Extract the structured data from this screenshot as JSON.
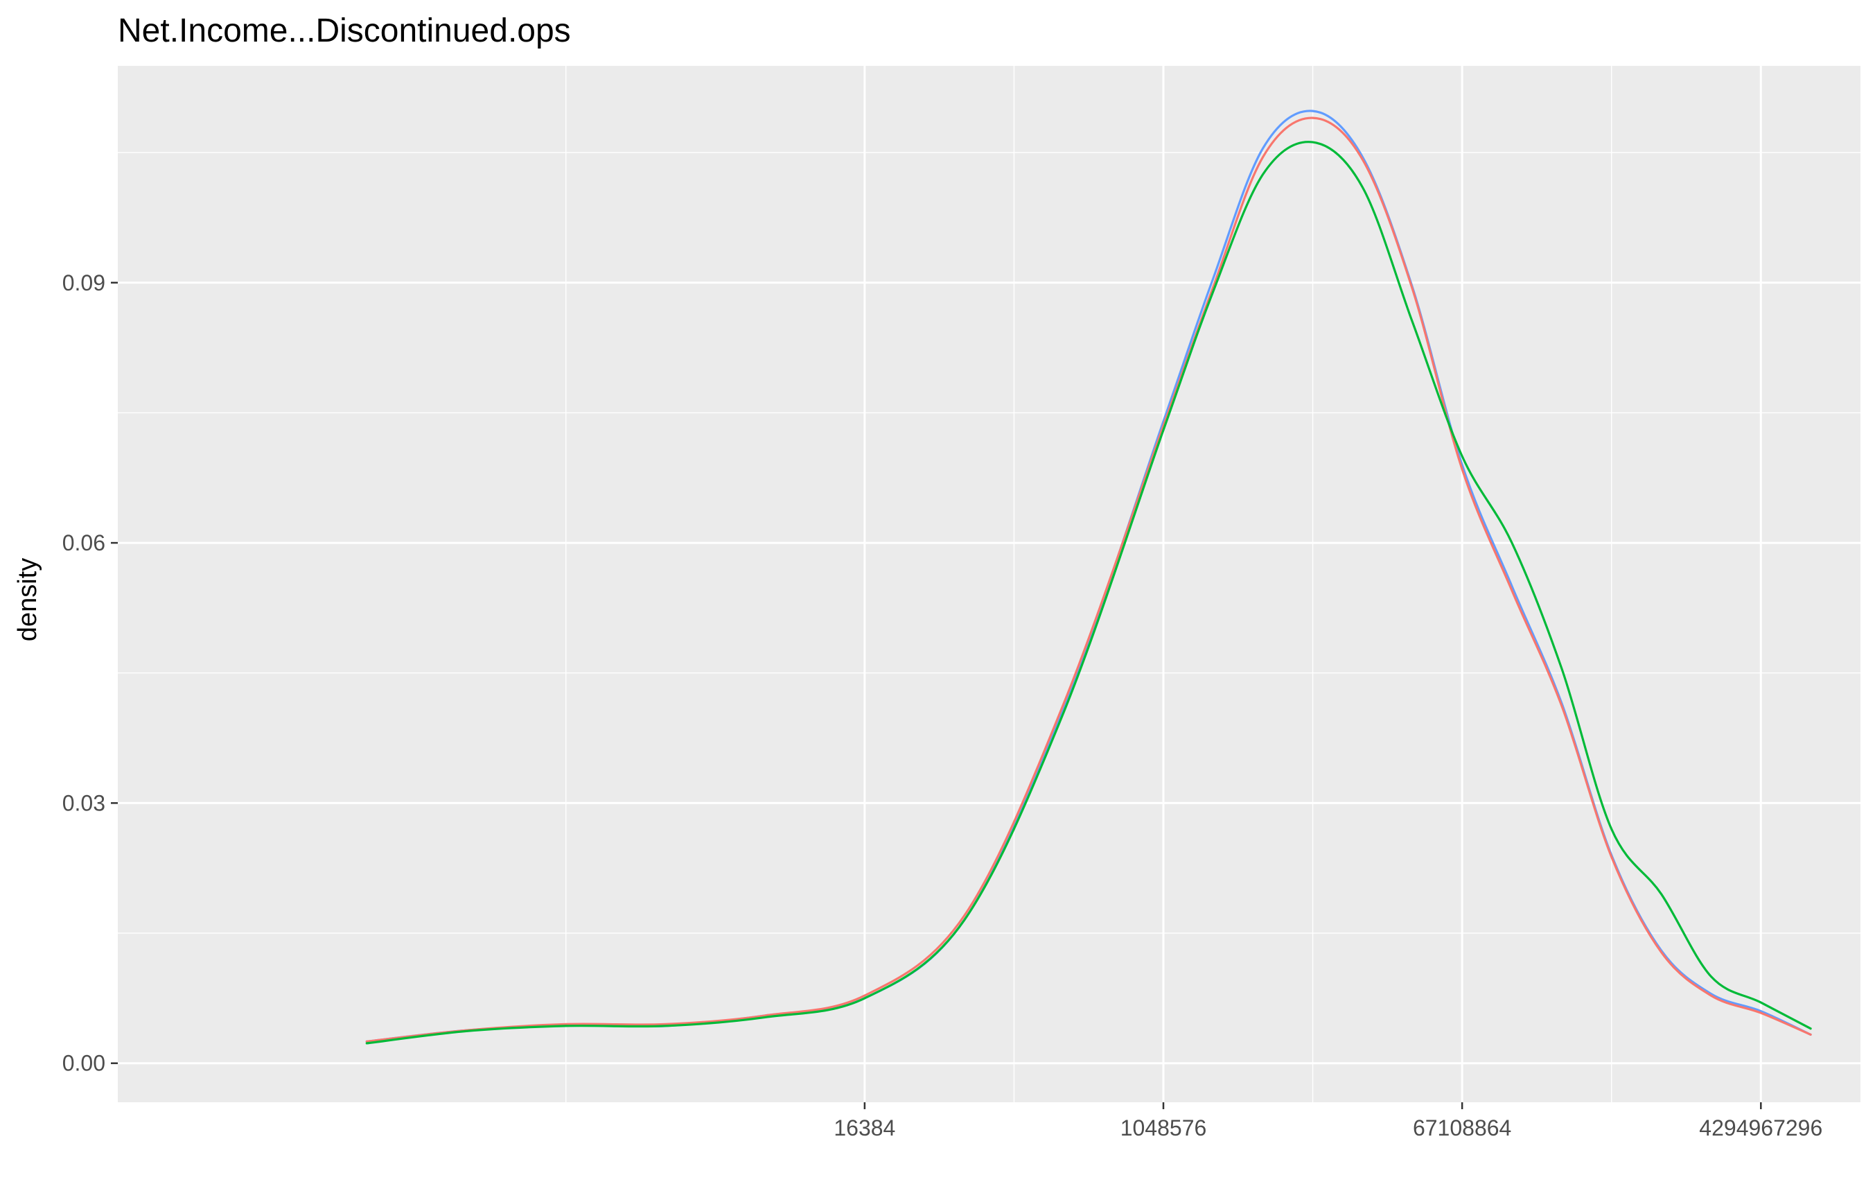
{
  "chart_data": {
    "type": "line",
    "title": "Net.Income...Discontinued.ops",
    "xlabel": "",
    "ylabel": "density",
    "x_scale": "log2",
    "xlim": [
      0.5,
      17179869184
    ],
    "ylim": [
      -0.0045,
      0.115
    ],
    "x_ticks": [
      {
        "value": 16384,
        "label": "16384"
      },
      {
        "value": 1048576,
        "label": "1048576"
      },
      {
        "value": 67108864,
        "label": "67108864"
      },
      {
        "value": 4294967296,
        "label": "4294967296"
      }
    ],
    "x_minor_ticks": [
      256,
      131072,
      8388608,
      536870912
    ],
    "y_ticks": [
      {
        "value": 0.0,
        "label": "0.00"
      },
      {
        "value": 0.03,
        "label": "0.03"
      },
      {
        "value": 0.06,
        "label": "0.06"
      },
      {
        "value": 0.09,
        "label": "0.09"
      }
    ],
    "y_minor_ticks": [
      0.015,
      0.045,
      0.075,
      0.105
    ],
    "grid": true,
    "legend": "none",
    "series": [
      {
        "color": "#619CFF",
        "x": [
          16,
          64,
          256,
          1024,
          4096,
          16384,
          65536,
          262144,
          1048576,
          2097152,
          4194304,
          8388608,
          16777216,
          33554432,
          67108864,
          134217728,
          268435456,
          536870912,
          1073741824,
          2147483648,
          4294967296,
          8589934592
        ],
        "y": [
          0.0025,
          0.0038,
          0.0044,
          0.0043,
          0.0055,
          0.0075,
          0.0165,
          0.041,
          0.074,
          0.0905,
          0.1055,
          0.1098,
          0.1045,
          0.0895,
          0.069,
          0.055,
          0.0415,
          0.024,
          0.013,
          0.008,
          0.006,
          0.0033
        ]
      },
      {
        "color": "#F8766D",
        "x": [
          16,
          64,
          256,
          1024,
          4096,
          16384,
          65536,
          262144,
          1048576,
          2097152,
          4194304,
          8388608,
          16777216,
          33554432,
          67108864,
          134217728,
          268435456,
          536870912,
          1073741824,
          2147483648,
          4294967296,
          8589934592
        ],
        "y": [
          0.0025,
          0.0038,
          0.0045,
          0.0045,
          0.0055,
          0.0078,
          0.017,
          0.0415,
          0.0735,
          0.0895,
          0.1045,
          0.109,
          0.1042,
          0.0893,
          0.0685,
          0.0545,
          0.0412,
          0.0238,
          0.0128,
          0.0078,
          0.0058,
          0.0033
        ]
      },
      {
        "color": "#00BA38",
        "x": [
          16,
          64,
          256,
          1024,
          4096,
          16384,
          65536,
          262144,
          1048576,
          2097152,
          4194304,
          8388608,
          16777216,
          33554432,
          67108864,
          134217728,
          268435456,
          536870912,
          1073741824,
          2147483648,
          4294967296,
          8589934592
        ],
        "y": [
          0.0023,
          0.0037,
          0.0043,
          0.0043,
          0.0053,
          0.0075,
          0.0165,
          0.0405,
          0.073,
          0.089,
          0.1025,
          0.1062,
          0.101,
          0.0855,
          0.07,
          0.06,
          0.0455,
          0.027,
          0.0195,
          0.01,
          0.007,
          0.004
        ]
      }
    ]
  }
}
